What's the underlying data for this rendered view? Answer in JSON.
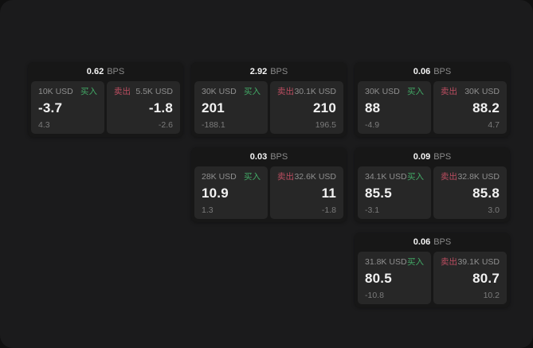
{
  "labels": {
    "buy": "买入",
    "sell": "卖出",
    "bps": "BPS"
  },
  "colors": {
    "page_background": "#101010",
    "surface": "#1b1b1c",
    "card_background": "#171717",
    "panel_background": "#272727",
    "buy_green": "#42aa66",
    "sell_red": "#bb4d60",
    "value_text": "#f2f2f2",
    "label_gray": "#8f8f8f",
    "sub_gray": "#7b7b7b"
  },
  "cards": [
    {
      "bps": "0.62",
      "buy": {
        "amount": "10K USD",
        "value": "-3.7",
        "sub": "4.3"
      },
      "sell": {
        "amount": "5.5K USD",
        "value": "-1.8",
        "sub": "-2.6"
      }
    },
    {
      "bps": "2.92",
      "buy": {
        "amount": "30K USD",
        "value": "201",
        "sub": "-188.1"
      },
      "sell": {
        "amount": "30.1K USD",
        "value": "210",
        "sub": "196.5"
      }
    },
    {
      "bps": "0.06",
      "buy": {
        "amount": "30K USD",
        "value": "88",
        "sub": "-4.9"
      },
      "sell": {
        "amount": "30K USD",
        "value": "88.2",
        "sub": "4.7"
      }
    },
    {
      "bps": "0.03",
      "buy": {
        "amount": "28K USD",
        "value": "10.9",
        "sub": "1.3"
      },
      "sell": {
        "amount": "32.6K USD",
        "value": "11",
        "sub": "-1.8"
      }
    },
    {
      "bps": "0.09",
      "buy": {
        "amount": "34.1K USD",
        "value": "85.5",
        "sub": "-3.1"
      },
      "sell": {
        "amount": "32.8K USD",
        "value": "85.8",
        "sub": "3.0"
      }
    },
    {
      "bps": "0.06",
      "buy": {
        "amount": "31.8K USD",
        "value": "80.5",
        "sub": "-10.8"
      },
      "sell": {
        "amount": "39.1K USD",
        "value": "80.7",
        "sub": "10.2"
      }
    }
  ]
}
